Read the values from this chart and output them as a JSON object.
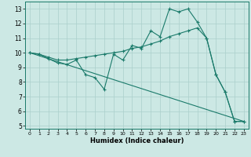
{
  "title": "",
  "xlabel": "Humidex (Indice chaleur)",
  "xlim": [
    -0.5,
    23.5
  ],
  "ylim": [
    4.8,
    13.5
  ],
  "xticks": [
    0,
    1,
    2,
    3,
    4,
    5,
    6,
    7,
    8,
    9,
    10,
    11,
    12,
    13,
    14,
    15,
    16,
    17,
    18,
    19,
    20,
    21,
    22,
    23
  ],
  "yticks": [
    5,
    6,
    7,
    8,
    9,
    10,
    11,
    12,
    13
  ],
  "bg_color": "#cce8e4",
  "grid_color": "#aacfcb",
  "line_color": "#1a7a6a",
  "line1_x": [
    0,
    1,
    2,
    3,
    4,
    5,
    6,
    7,
    8,
    9,
    10,
    11,
    12,
    13,
    14,
    15,
    16,
    17,
    18,
    19,
    20,
    21,
    22,
    23
  ],
  "line1_y": [
    10.0,
    9.9,
    9.6,
    9.3,
    9.2,
    9.5,
    8.5,
    8.3,
    7.5,
    9.9,
    9.5,
    10.5,
    10.3,
    11.5,
    11.1,
    13.0,
    12.8,
    13.0,
    12.1,
    11.0,
    8.5,
    7.3,
    5.3,
    5.3
  ],
  "line2_x": [
    0,
    1,
    2,
    3,
    4,
    5,
    6,
    7,
    8,
    9,
    10,
    11,
    12,
    13,
    14,
    15,
    16,
    17,
    18,
    19,
    20,
    21,
    22,
    23
  ],
  "line2_y": [
    10.0,
    9.9,
    9.7,
    9.5,
    9.5,
    9.6,
    9.7,
    9.8,
    9.9,
    10.0,
    10.1,
    10.3,
    10.4,
    10.6,
    10.8,
    11.1,
    11.3,
    11.5,
    11.7,
    11.0,
    8.5,
    7.3,
    5.3,
    5.3
  ],
  "line3_x": [
    0,
    23
  ],
  "line3_y": [
    10.0,
    5.3
  ],
  "figsize": [
    3.2,
    2.0
  ],
  "dpi": 100
}
